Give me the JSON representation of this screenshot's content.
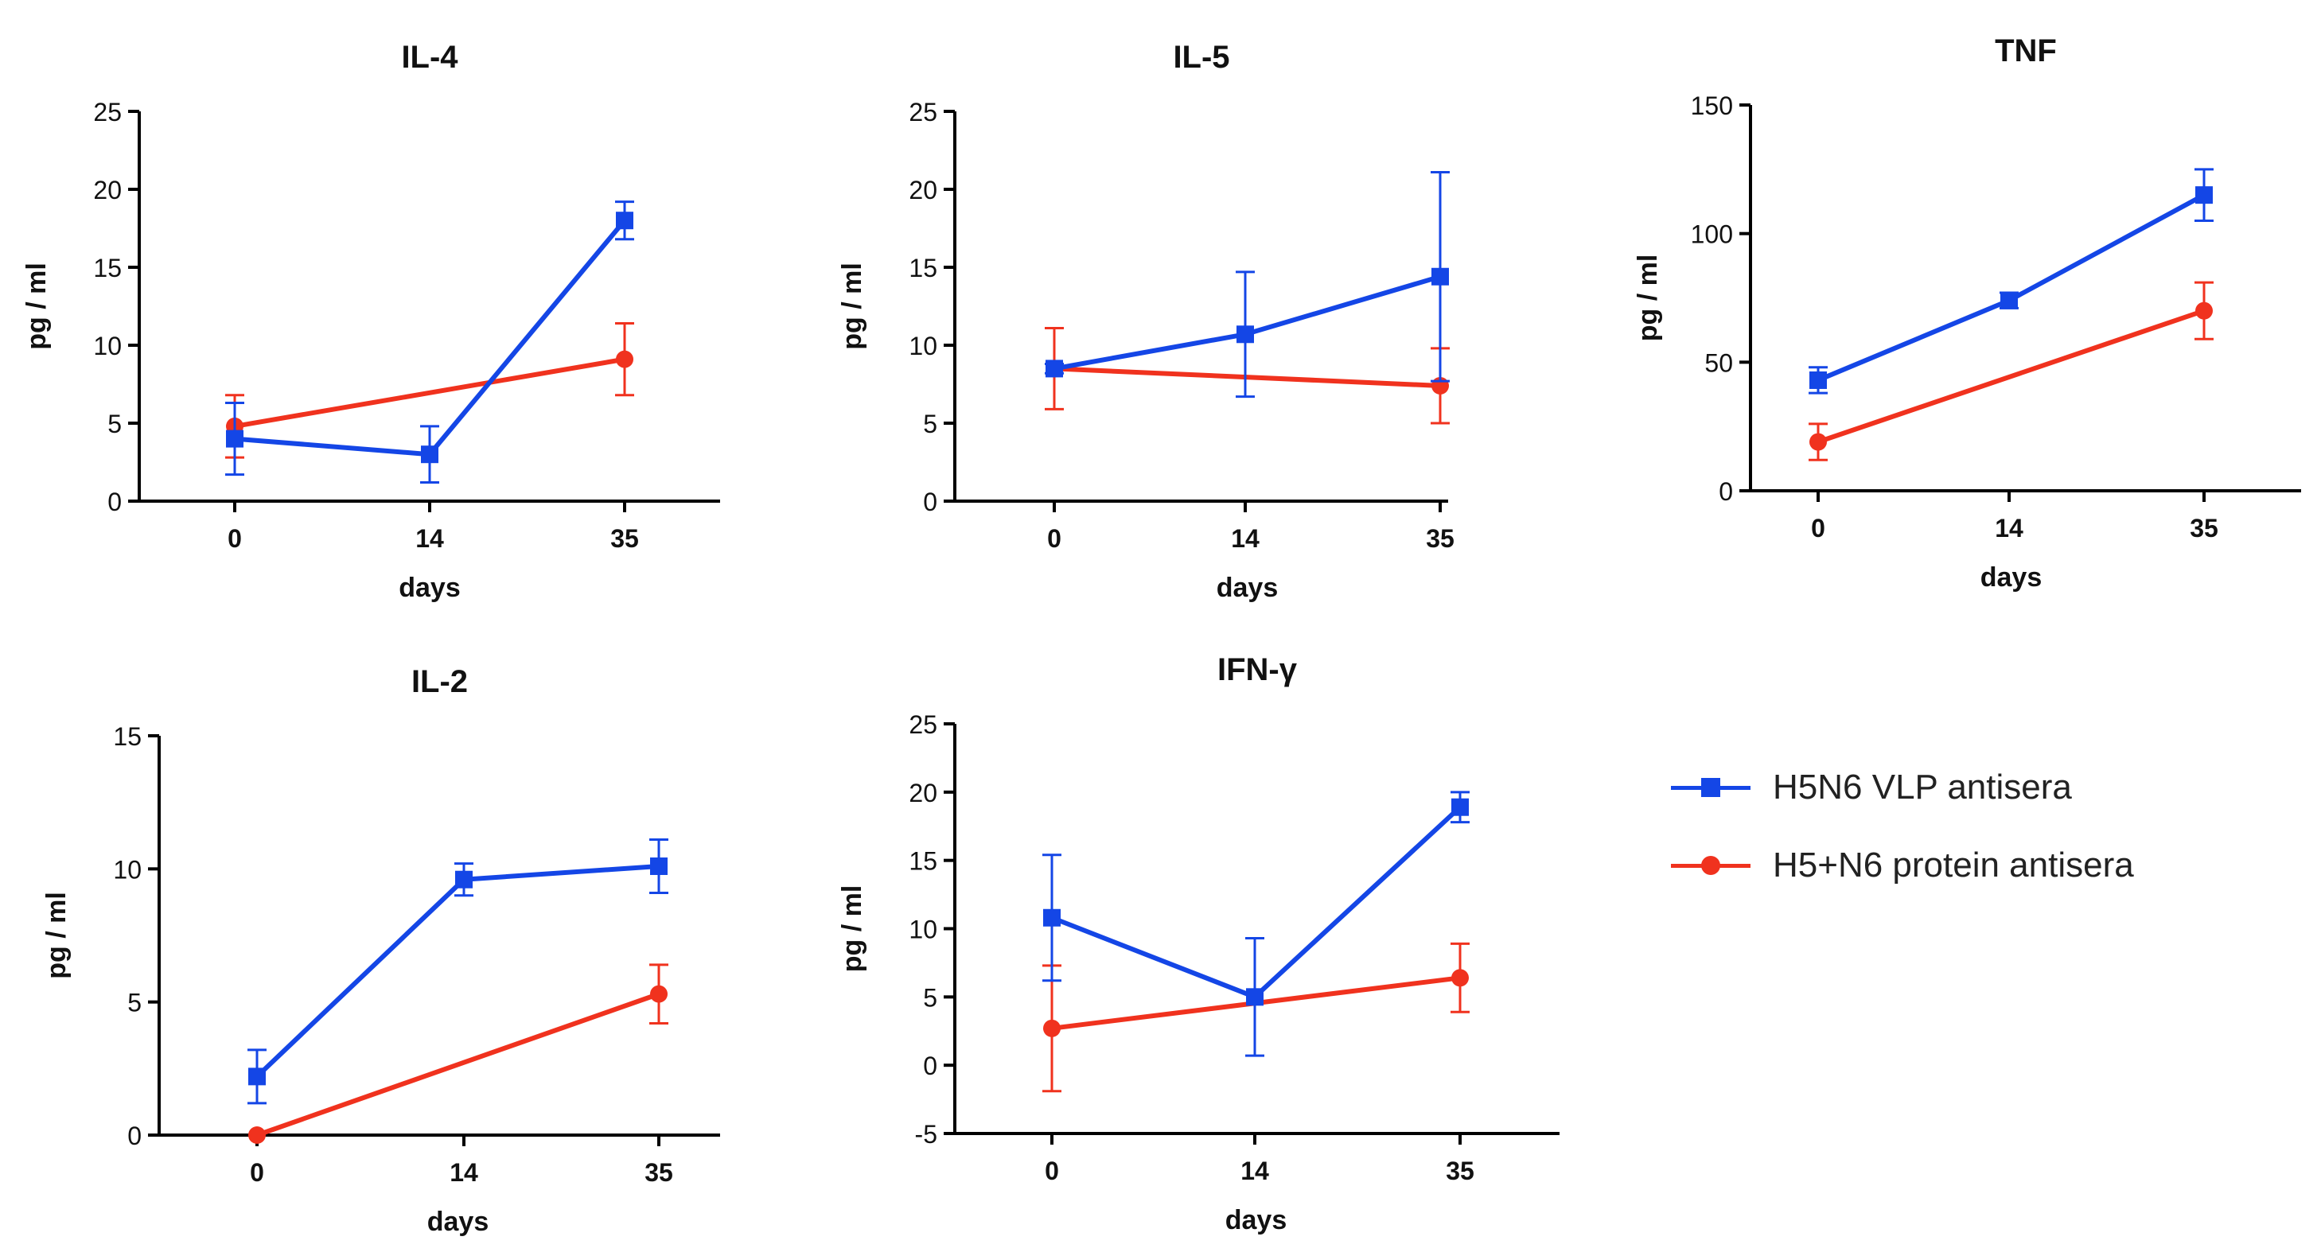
{
  "colors": {
    "vlp": "#1446e6",
    "protein": "#f0321e",
    "axis": "#000000",
    "text": "#111111"
  },
  "legend": {
    "vlp_label": "H5N6 VLP antisera",
    "protein_label": "H5+N6 protein antisera"
  },
  "chart_data": [
    {
      "type": "line",
      "title": "IL-4",
      "xlabel": "days",
      "ylabel": "pg / ml",
      "categories": [
        "0",
        "14",
        "35"
      ],
      "ylim": [
        0,
        25
      ],
      "yticks": [
        "0",
        "5",
        "10",
        "15",
        "20",
        "25"
      ],
      "grid": false,
      "series": [
        {
          "name": "H5N6 VLP antisera",
          "marker": "square",
          "values": [
            4.0,
            3.0,
            18.0
          ],
          "err": [
            2.3,
            1.8,
            1.2
          ]
        },
        {
          "name": "H5+N6 protein antisera",
          "marker": "circle",
          "values": [
            4.8,
            null,
            9.1
          ],
          "err": [
            2.0,
            null,
            2.3
          ]
        }
      ]
    },
    {
      "type": "line",
      "title": "IL-5",
      "xlabel": "days",
      "ylabel": "pg / ml",
      "categories": [
        "0",
        "14",
        "35"
      ],
      "ylim": [
        0,
        25
      ],
      "yticks": [
        "0",
        "5",
        "10",
        "15",
        "20",
        "25"
      ],
      "grid": false,
      "series": [
        {
          "name": "H5N6 VLP antisera",
          "marker": "square",
          "values": [
            8.5,
            10.7,
            14.4
          ],
          "err": [
            0.3,
            4.0,
            6.7
          ]
        },
        {
          "name": "H5+N6 protein antisera",
          "marker": "circle",
          "values": [
            8.5,
            null,
            7.4
          ],
          "err": [
            2.6,
            null,
            2.4
          ]
        }
      ]
    },
    {
      "type": "line",
      "title": "TNF",
      "xlabel": "days",
      "ylabel": "pg / ml",
      "categories": [
        "0",
        "14",
        "35"
      ],
      "ylim": [
        0,
        150
      ],
      "yticks": [
        "0",
        "50",
        "100",
        "150"
      ],
      "grid": false,
      "series": [
        {
          "name": "H5N6 VLP antisera",
          "marker": "square",
          "values": [
            43,
            74,
            115
          ],
          "err": [
            5,
            3,
            10
          ]
        },
        {
          "name": "H5+N6 protein antisera",
          "marker": "circle",
          "values": [
            19,
            null,
            70
          ],
          "err": [
            7,
            null,
            11
          ]
        }
      ]
    },
    {
      "type": "line",
      "title": "IL-2",
      "xlabel": "days",
      "ylabel": "pg / ml",
      "categories": [
        "0",
        "14",
        "35"
      ],
      "ylim": [
        0,
        15
      ],
      "yticks": [
        "0",
        "5",
        "10",
        "15"
      ],
      "grid": false,
      "series": [
        {
          "name": "H5N6 VLP antisera",
          "marker": "square",
          "values": [
            2.2,
            9.6,
            10.1
          ],
          "err": [
            1.0,
            0.6,
            1.0
          ]
        },
        {
          "name": "H5+N6 protein antisera",
          "marker": "circle",
          "values": [
            0.0,
            null,
            5.3
          ],
          "err": [
            0,
            null,
            1.1
          ]
        }
      ]
    },
    {
      "type": "line",
      "title": "IFN-γ",
      "xlabel": "days",
      "ylabel": "pg / ml",
      "categories": [
        "0",
        "14",
        "35"
      ],
      "ylim": [
        -5,
        25
      ],
      "yticks": [
        "-5",
        "0",
        "5",
        "10",
        "15",
        "20",
        "25"
      ],
      "grid": false,
      "series": [
        {
          "name": "H5N6 VLP antisera",
          "marker": "square",
          "values": [
            10.8,
            5.0,
            18.9
          ],
          "err": [
            4.6,
            4.3,
            1.1
          ]
        },
        {
          "name": "H5+N6 protein antisera",
          "marker": "circle",
          "values": [
            2.7,
            null,
            6.4
          ],
          "err": [
            4.6,
            null,
            2.5
          ]
        }
      ]
    }
  ]
}
